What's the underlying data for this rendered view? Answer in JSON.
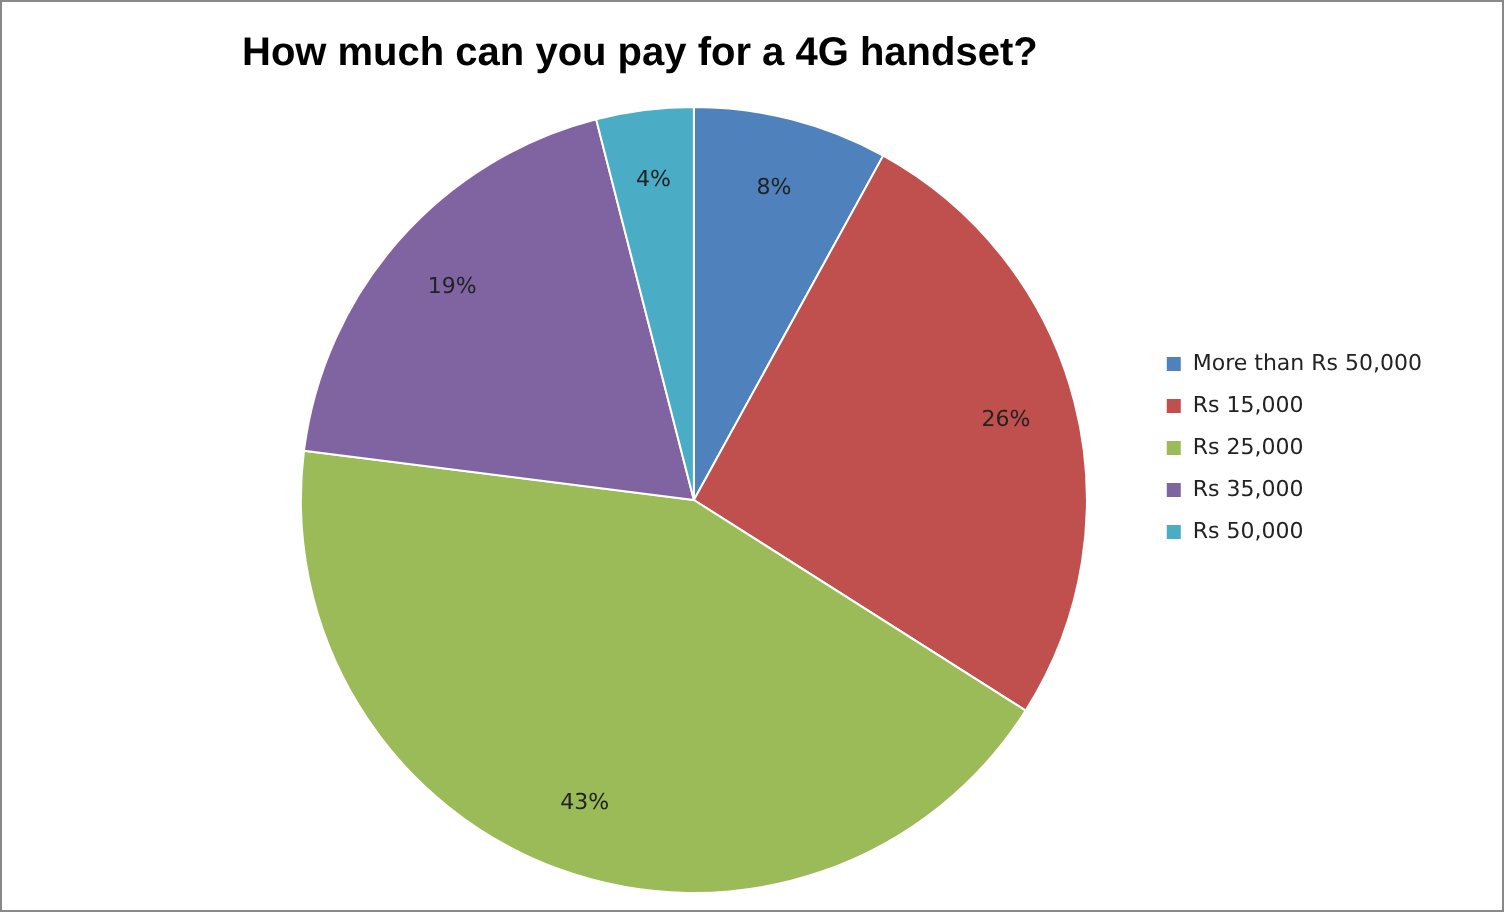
{
  "chart_data": {
    "type": "pie",
    "title": "How much can you pay for a 4G handset?",
    "categories": [
      "More than Rs 50,000",
      "Rs 15,000",
      "Rs 25,000",
      "Rs 35,000",
      "Rs 50,000"
    ],
    "values": [
      8,
      26,
      43,
      19,
      4
    ],
    "colors": [
      "#4f81bd",
      "#c0504d",
      "#9bbb59",
      "#8064a2",
      "#4bacc6"
    ],
    "value_labels": [
      "8%",
      "26%",
      "43%",
      "19%",
      "4%"
    ],
    "legend": "right"
  }
}
